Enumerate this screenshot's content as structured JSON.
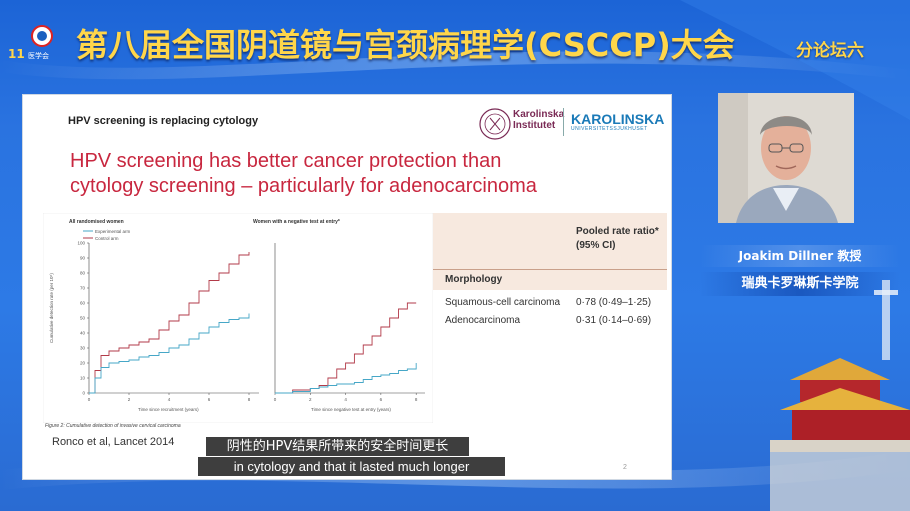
{
  "header": {
    "conference_title": "第八届全国阴道镜与宫颈病理学(CSCCP)大会",
    "forum_tag": "分论坛六",
    "logo_text_top": "11",
    "logo_text_label": "医学会"
  },
  "slide": {
    "header": "HPV screening is replacing cytology",
    "logo_ki_line1": "Karolinska",
    "logo_ki_line2": "Institutet",
    "logo_ku_name": "KAROLINSKA",
    "logo_ku_sub": "UNIVERSITETSSJUKHUSET",
    "title_line1": "HPV screening has better cancer protection than",
    "title_line2": "cytology screening – particularly for adenocarcinoma",
    "citation": "Ronco et al, Lancet 2014",
    "page_number": "2",
    "figure": {
      "left_panel_title": "All randomised women",
      "right_panel_title": "Women with a negative test at entry*",
      "legend_experimental": "Experimental arm",
      "legend_control": "Control arm",
      "y_axis_label": "Cumulative detection rate (per 10⁵)",
      "left_x_label": "Time since recruitment (years)",
      "right_x_label": "Time since negative test at entry (years)",
      "caption": "Figure 2: Cumulative detection of invasive cervical carcinoma",
      "y_ticks": [
        "0",
        "10",
        "20",
        "30",
        "40",
        "50",
        "60",
        "70",
        "80",
        "90",
        "100"
      ],
      "x_ticks": [
        "0",
        "2",
        "4",
        "6",
        "8"
      ]
    },
    "table": {
      "header_ratio_line1": "Pooled rate ratio*",
      "header_ratio_line2": "(95% CI)",
      "section": "Morphology",
      "rows": [
        {
          "label": "Squamous-cell carcinoma",
          "value": "0·78 (0·49–1·25)"
        },
        {
          "label": "Adenocarcinoma",
          "value": "0·31 (0·14–0·69)"
        }
      ]
    }
  },
  "subtitles": {
    "chinese": "阴性的HPV结果所带来的安全时间更长",
    "english": "in cytology and that it lasted much longer"
  },
  "speaker": {
    "name": "Joakim Dillner 教授",
    "institution": "瑞典卡罗琳斯卡学院"
  },
  "colors": {
    "background": "#2a73e0",
    "title_gold": "#ffd64a",
    "slide_title_red": "#c8273f",
    "control_line": "#b23a48",
    "experimental_line": "#46a7c7",
    "table_header_bg": "#f7e9df"
  },
  "chart_data": [
    {
      "type": "line",
      "title": "All randomised women",
      "xlabel": "Time since recruitment (years)",
      "ylabel": "Cumulative detection rate (per 10⁵)",
      "xlim": [
        0,
        8.5
      ],
      "ylim": [
        0,
        100
      ],
      "series": [
        {
          "name": "Control arm",
          "color": "#b23a48",
          "x": [
            0,
            0.3,
            0.6,
            1.0,
            1.5,
            2.0,
            2.5,
            3.0,
            3.5,
            4.0,
            4.5,
            5.0,
            5.5,
            6.0,
            6.5,
            7.0,
            7.5,
            8.0
          ],
          "y": [
            0,
            15,
            25,
            28,
            30,
            32,
            34,
            36,
            42,
            48,
            52,
            60,
            68,
            75,
            80,
            86,
            92,
            94
          ]
        },
        {
          "name": "Experimental arm",
          "color": "#46a7c7",
          "x": [
            0,
            0.3,
            0.6,
            1.0,
            1.5,
            2.0,
            2.5,
            3.0,
            3.5,
            4.0,
            4.5,
            5.0,
            5.5,
            6.0,
            6.5,
            7.0,
            7.5,
            8.0
          ],
          "y": [
            0,
            10,
            17,
            20,
            21,
            22,
            24,
            25,
            27,
            30,
            32,
            36,
            40,
            44,
            47,
            49,
            50,
            53
          ]
        }
      ]
    },
    {
      "type": "line",
      "title": "Women with a negative test at entry*",
      "xlabel": "Time since negative test at entry (years)",
      "ylabel": "",
      "xlim": [
        0,
        8.5
      ],
      "ylim": [
        0,
        100
      ],
      "series": [
        {
          "name": "Control arm",
          "color": "#b23a48",
          "x": [
            0,
            1.0,
            2.0,
            2.5,
            3.0,
            3.5,
            4.0,
            4.5,
            5.0,
            5.5,
            6.0,
            6.5,
            7.0,
            7.5,
            8.0
          ],
          "y": [
            0,
            2,
            3,
            5,
            10,
            16,
            20,
            26,
            32,
            38,
            44,
            50,
            56,
            60,
            60
          ]
        },
        {
          "name": "Experimental arm",
          "color": "#46a7c7",
          "x": [
            0,
            1.0,
            2.0,
            2.5,
            3.0,
            3.5,
            4.0,
            4.5,
            5.0,
            5.5,
            6.0,
            6.5,
            7.0,
            7.5,
            8.0
          ],
          "y": [
            0,
            1,
            3,
            4,
            5,
            6,
            6,
            7,
            9,
            11,
            12,
            13,
            15,
            16,
            20
          ]
        }
      ]
    }
  ]
}
